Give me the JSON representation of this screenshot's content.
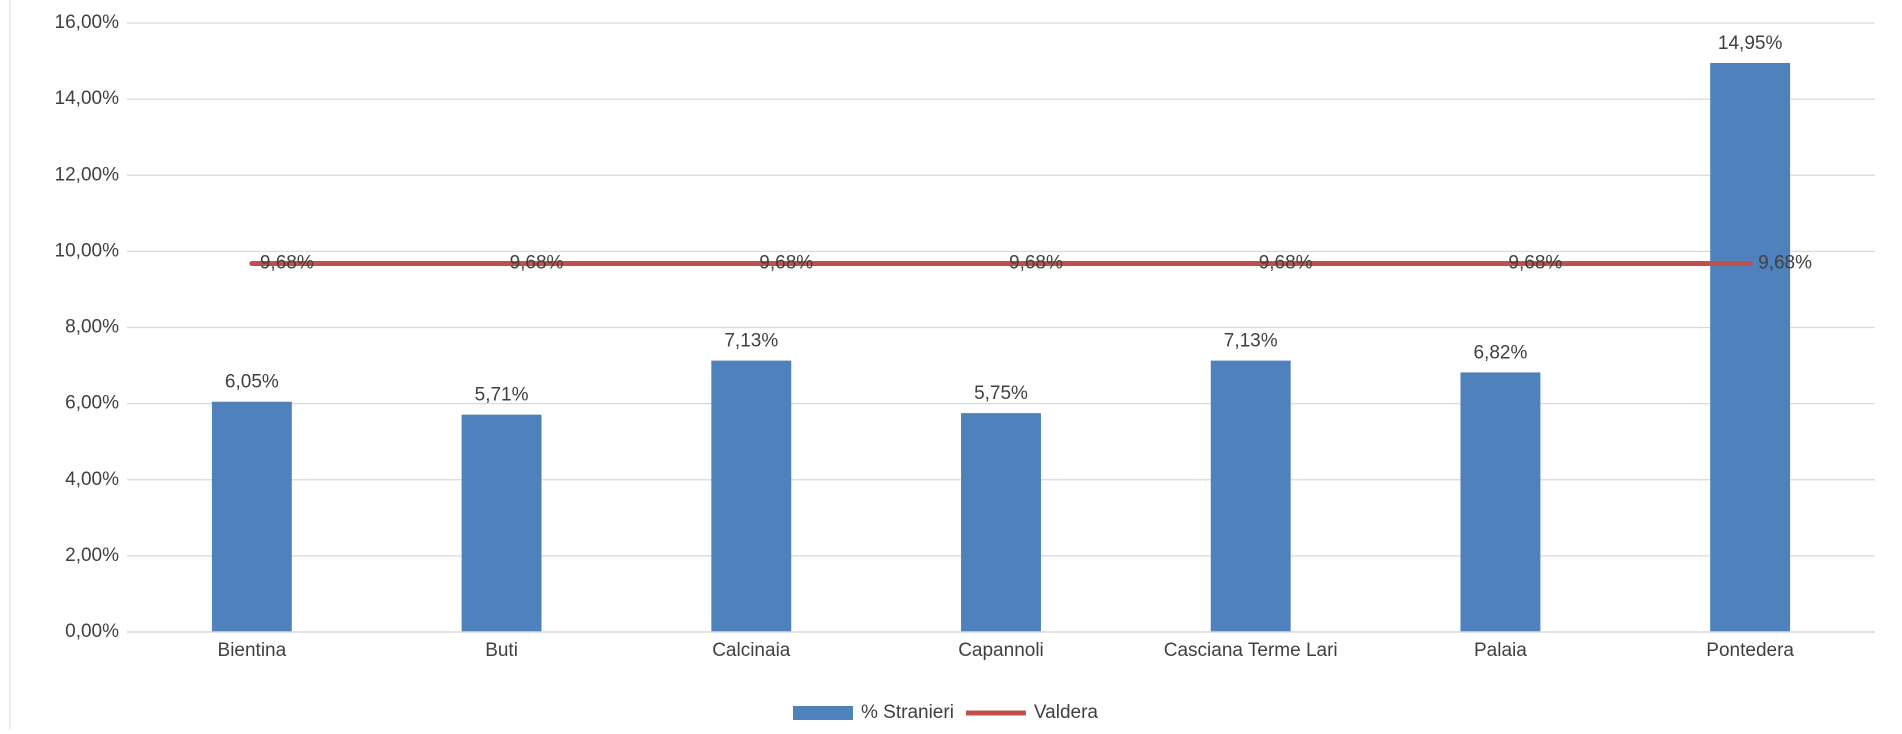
{
  "chart_data": {
    "type": "bar",
    "categories": [
      "Bientina",
      "Buti",
      "Calcinaia",
      "Capannoli",
      "Casciana Terme Lari",
      "Palaia",
      "Pontedera"
    ],
    "series": [
      {
        "name": "% Stranieri",
        "type": "bar",
        "color": "#4f81bd",
        "values": [
          6.05,
          5.71,
          7.13,
          5.75,
          7.13,
          6.82,
          14.95
        ],
        "value_labels": [
          "6,05%",
          "5,71%",
          "7,13%",
          "5,75%",
          "7,13%",
          "6,82%",
          "14,95%"
        ]
      },
      {
        "name": "Valdera",
        "type": "line",
        "color": "#c0504d",
        "values": [
          9.68,
          9.68,
          9.68,
          9.68,
          9.68,
          9.68,
          9.68
        ],
        "value_labels": [
          "9,68%",
          "9,68%",
          "9,68%",
          "9,68%",
          "9,68%",
          "9,68%",
          "9,68%"
        ]
      }
    ],
    "ylim": [
      0,
      16
    ],
    "yticks": [
      {
        "value": 0,
        "label": "0,00%"
      },
      {
        "value": 2,
        "label": "2,00%"
      },
      {
        "value": 4,
        "label": "4,00%"
      },
      {
        "value": 6,
        "label": "6,00%"
      },
      {
        "value": 8,
        "label": "8,00%"
      },
      {
        "value": 10,
        "label": "10,00%"
      },
      {
        "value": 12,
        "label": "12,00%"
      },
      {
        "value": 14,
        "label": "14,00%"
      },
      {
        "value": 16,
        "label": "16,00%"
      }
    ],
    "grid": true,
    "legend": "bottom"
  }
}
